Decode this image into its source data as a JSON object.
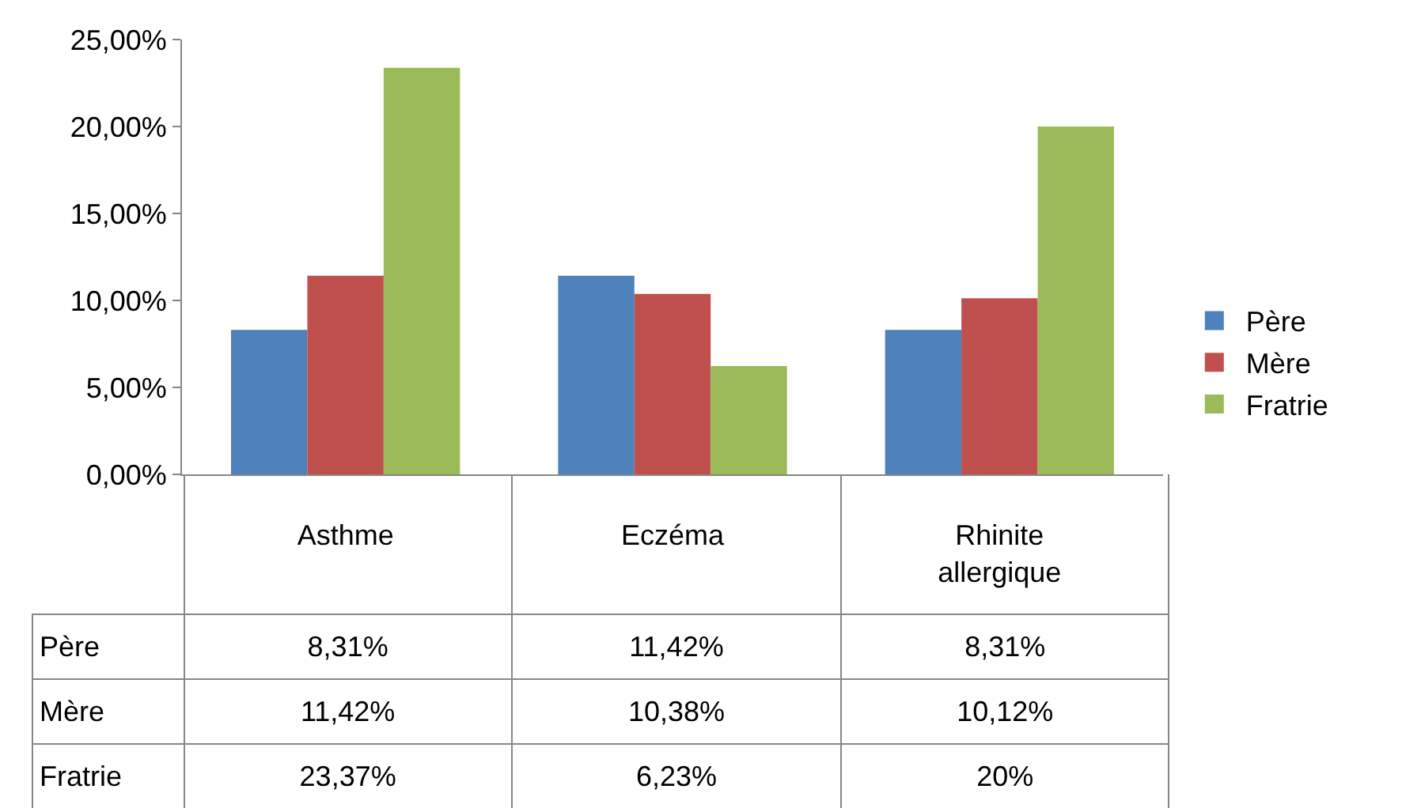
{
  "chart_data": {
    "type": "bar",
    "categories": [
      "Asthme",
      "Eczéma",
      "Rhinite allergique"
    ],
    "series": [
      {
        "name": "Père",
        "color": "#4f81bd",
        "values": [
          8.31,
          11.42,
          8.31
        ],
        "value_labels": [
          "8,31%",
          "11,42%",
          "8,31%"
        ]
      },
      {
        "name": "Mère",
        "color": "#c0504d",
        "values": [
          11.42,
          10.38,
          10.12
        ],
        "value_labels": [
          "11,42%",
          "10,38%",
          "10,12%"
        ]
      },
      {
        "name": "Fratrie",
        "color": "#9bbb59",
        "values": [
          23.37,
          6.23,
          20
        ],
        "value_labels": [
          "23,37%",
          "6,23%",
          "20%"
        ]
      }
    ],
    "ylim": [
      0,
      25
    ],
    "yticks": [
      {
        "value": 0,
        "label": "0,00%"
      },
      {
        "value": 5,
        "label": "5,00%"
      },
      {
        "value": 10,
        "label": "10,00%"
      },
      {
        "value": 15,
        "label": "15,00%"
      },
      {
        "value": 20,
        "label": "20,00%"
      },
      {
        "value": 25,
        "label": "25,00%"
      }
    ],
    "grid": false,
    "legend": "right"
  }
}
